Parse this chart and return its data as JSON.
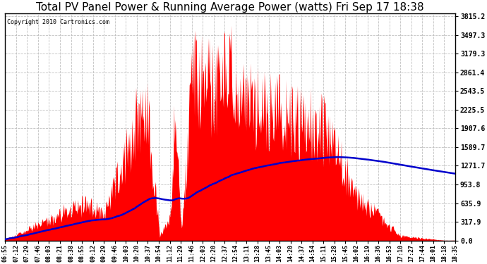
{
  "title": "Total PV Panel Power & Running Average Power (watts) Fri Sep 17 18:38",
  "copyright": "Copyright 2010 Cartronics.com",
  "yticks": [
    0.0,
    317.9,
    635.9,
    953.8,
    1271.7,
    1589.7,
    1907.6,
    2225.5,
    2543.5,
    2861.4,
    3179.3,
    3497.3,
    3815.2
  ],
  "xtick_labels": [
    "06:55",
    "07:12",
    "07:29",
    "07:46",
    "08:03",
    "08:21",
    "08:38",
    "08:55",
    "09:12",
    "09:29",
    "09:46",
    "10:03",
    "10:20",
    "10:37",
    "10:54",
    "11:12",
    "11:29",
    "11:46",
    "12:03",
    "12:20",
    "12:37",
    "12:54",
    "13:11",
    "13:28",
    "13:45",
    "14:03",
    "14:20",
    "14:37",
    "14:54",
    "15:11",
    "15:28",
    "15:45",
    "16:02",
    "16:19",
    "16:36",
    "16:53",
    "17:10",
    "17:27",
    "17:44",
    "18:01",
    "18:18",
    "18:35"
  ],
  "bg_color": "#ffffff",
  "plot_bg_color": "#ffffff",
  "grid_color": "#c0c0c0",
  "bar_color": "#ff0000",
  "line_color": "#0000cc",
  "title_color": "#000000",
  "copyright_color": "#000000",
  "title_fontsize": 11,
  "copyright_fontsize": 6,
  "ymax": 3815.2,
  "ymin": 0.0,
  "figwidth": 6.9,
  "figheight": 3.75,
  "dpi": 100
}
